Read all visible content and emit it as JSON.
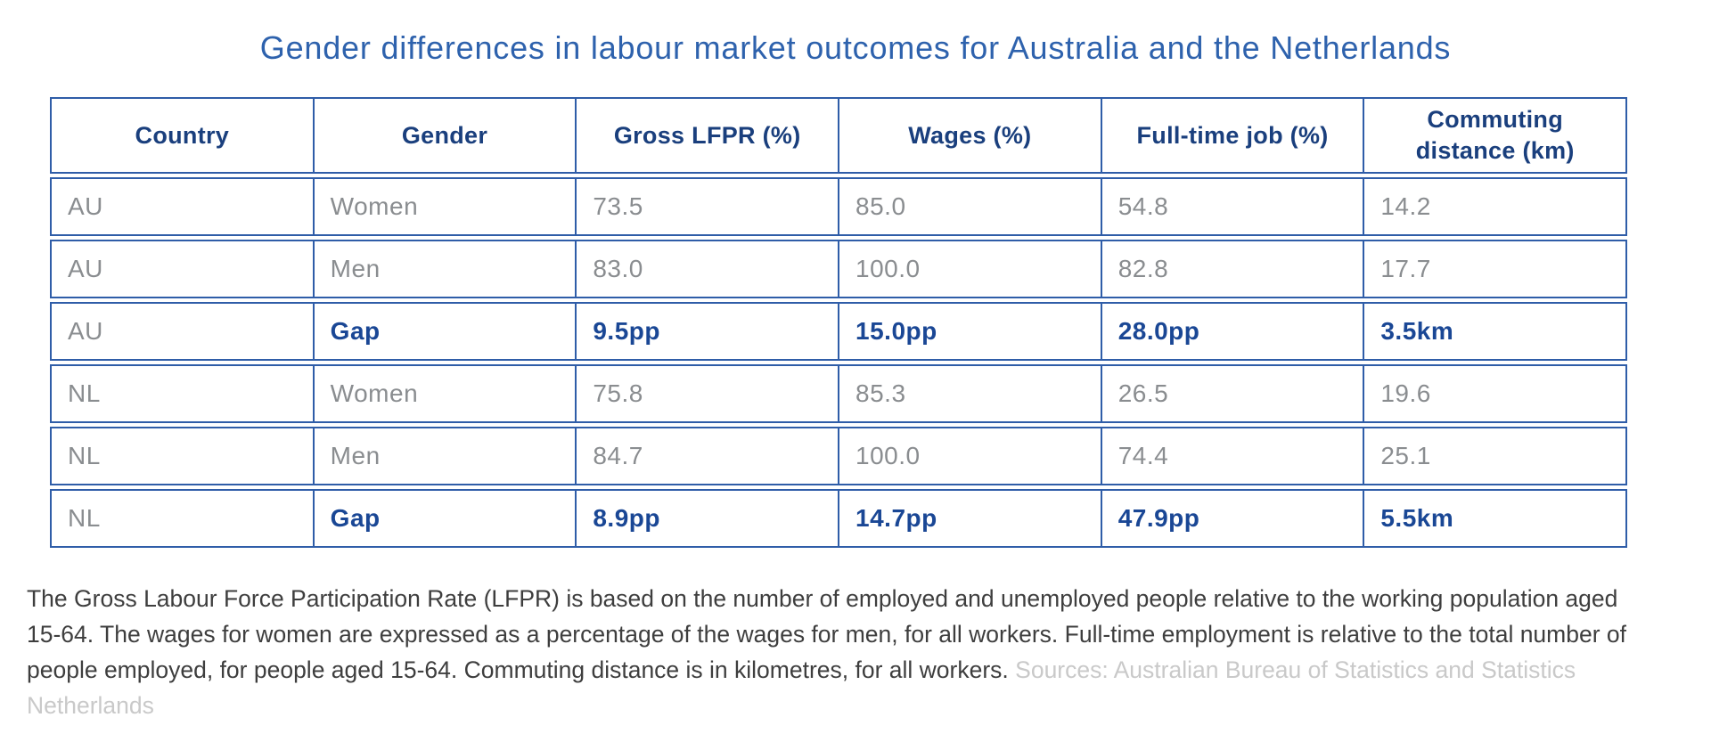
{
  "title": "Gender differences in labour market outcomes for Australia and the Netherlands",
  "chart_data": {
    "type": "table",
    "title": "Gender differences in labour market outcomes for Australia and the Netherlands",
    "columns": [
      "Country",
      "Gender",
      "Gross LFPR (%)",
      "Wages (%)",
      "Full-time job (%)",
      "Commuting distance (km)"
    ],
    "rows": [
      [
        "AU",
        "Women",
        "73.5",
        "85.0",
        "54.8",
        "14.2"
      ],
      [
        "AU",
        "Men",
        "83.0",
        "100.0",
        "82.8",
        "17.7"
      ],
      [
        "AU",
        "Gap",
        "9.5pp",
        "15.0pp",
        "28.0pp",
        "3.5km"
      ],
      [
        "NL",
        "Women",
        "75.8",
        "85.3",
        "26.5",
        "19.6"
      ],
      [
        "NL",
        "Men",
        "84.7",
        "100.0",
        "74.4",
        "25.1"
      ],
      [
        "NL",
        "Gap",
        "8.9pp",
        "14.7pp",
        "47.9pp",
        "5.5km"
      ]
    ],
    "gap_row_indices": [
      2,
      5
    ],
    "legend_position": "none",
    "grid": true
  },
  "table": {
    "commuting_header": {
      "line1": "Commuting",
      "line2": "distance (km)"
    }
  },
  "footnote": {
    "lines": [
      {
        "dark": "The Gross Labour Force Participation Rate (LFPR) is based on the number of employed and unemployed people relative to the working population aged",
        "light": ""
      },
      {
        "dark": "15-64. The wages for women are expressed as a percentage of the wages for men, for all workers. Full-time employment is relative to the total number of",
        "light": ""
      },
      {
        "dark": "people employed, for people aged 15-64. Commuting distance is in kilometres, for all workers. ",
        "light": "Sources: Australian Bureau of Statistics and Statistics"
      },
      {
        "dark": "",
        "light": "Netherlands"
      }
    ]
  },
  "colors": {
    "title_blue": "#2e62ad",
    "border_blue": "#2f5da8",
    "header_navy": "#1a3f7d",
    "gap_navy": "#1a4795",
    "body_gray": "#8a8d90",
    "footnote_dark": "#3e3e3e",
    "footnote_light": "#c9c9c9",
    "background": "#ffffff"
  }
}
